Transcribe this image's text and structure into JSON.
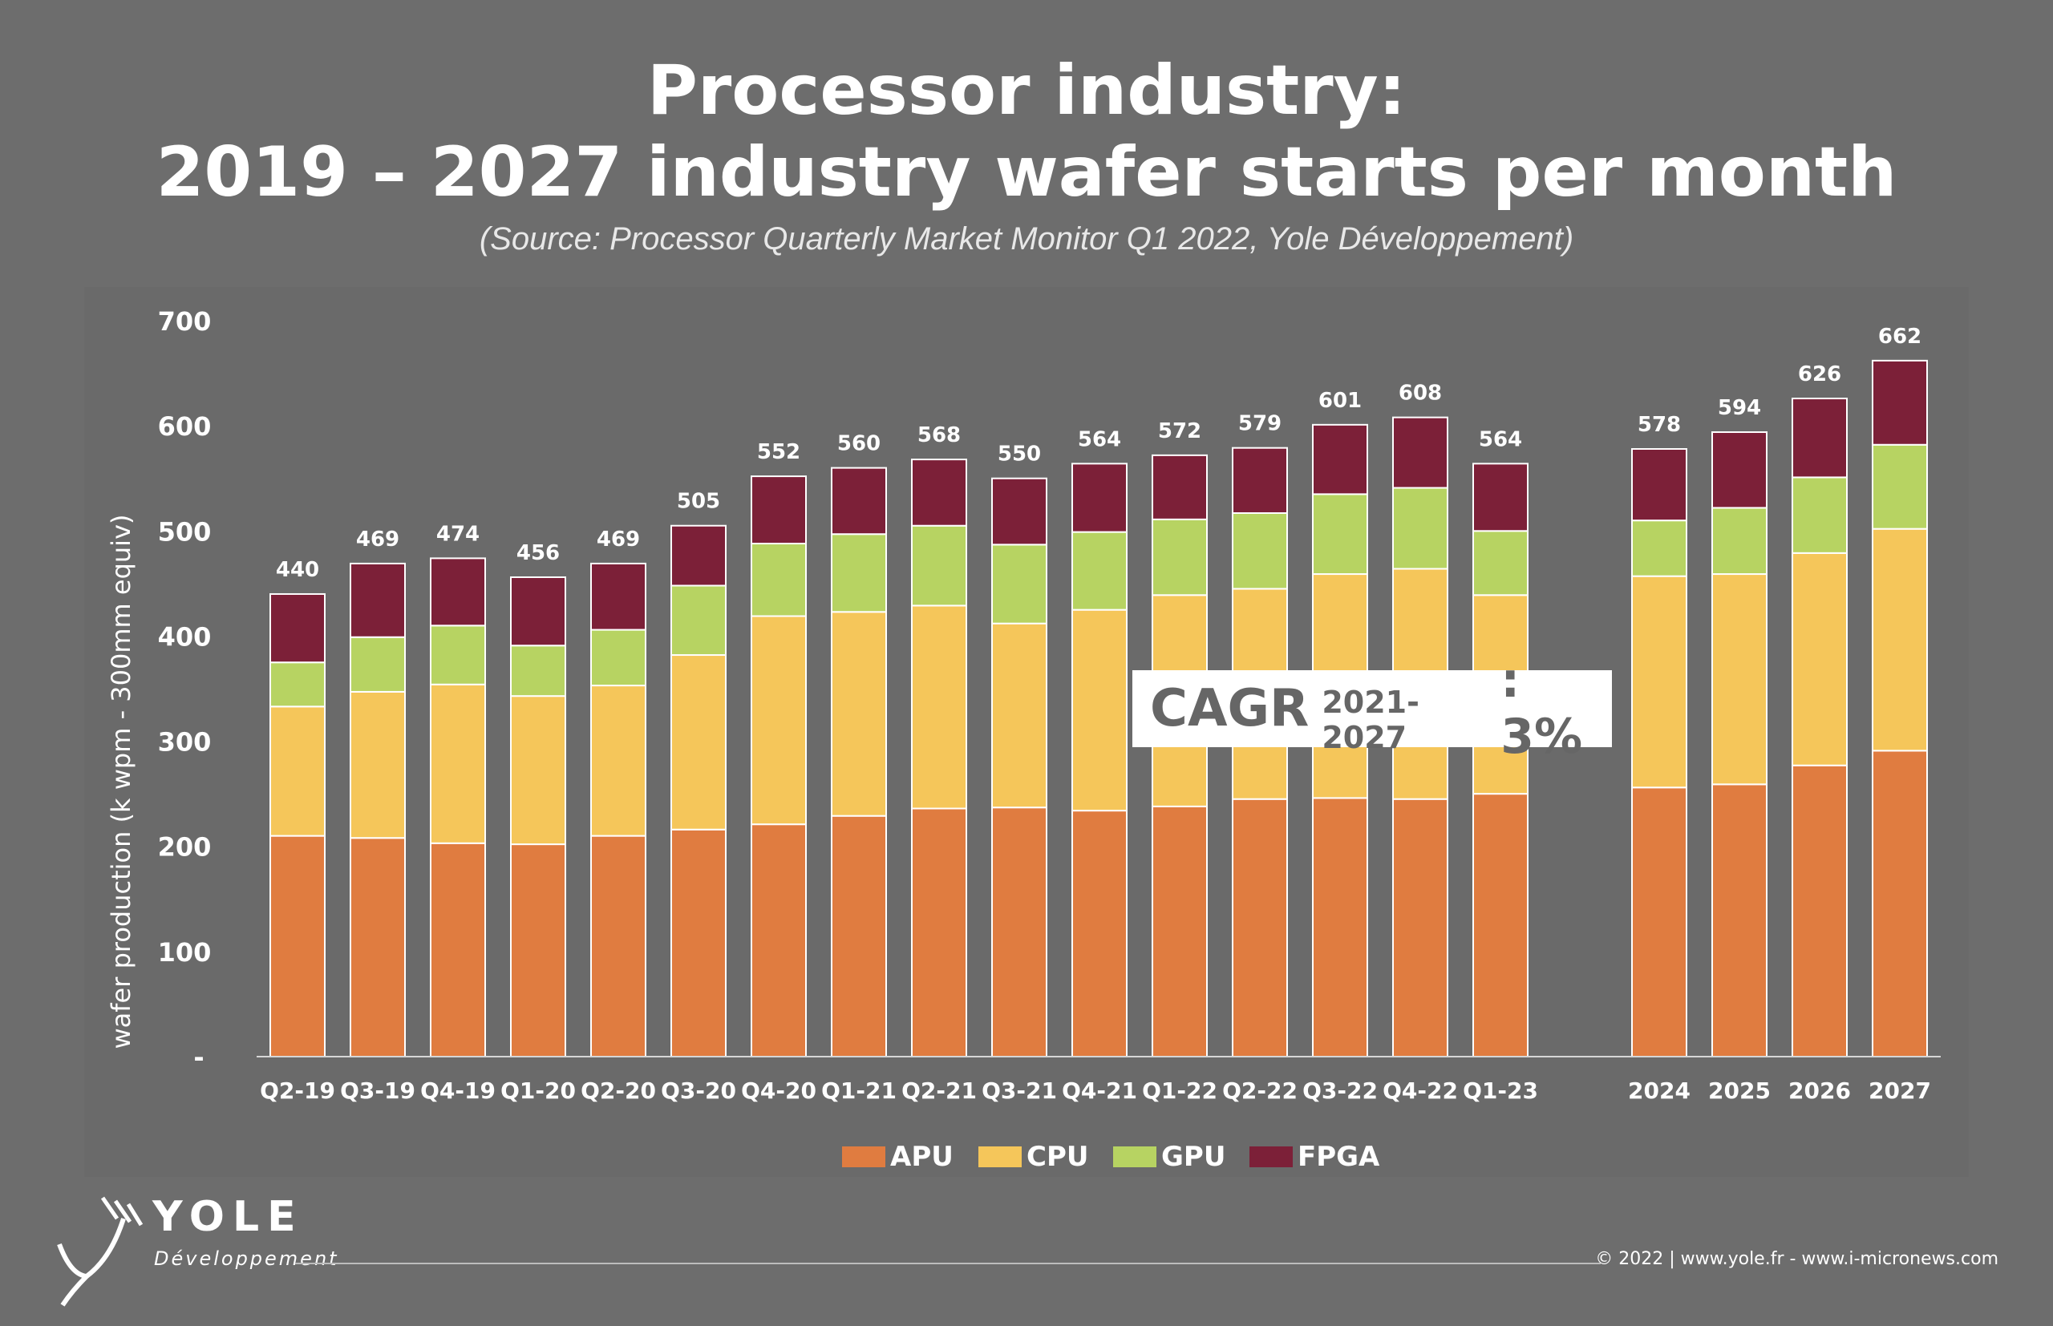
{
  "title_line1": "Processor industry:",
  "title_line2": "2019 – 2027 industry wafer starts per month",
  "source": "(Source: Processor Quarterly Market Monitor Q1  2022, Yole Développement)",
  "cagr": {
    "label": "CAGR",
    "period": "2021-2027",
    "value": ": 3%"
  },
  "logo": {
    "name": "YOLE",
    "subtitle": "Développement"
  },
  "footer": "© 2022 | www.yole.fr - www.i-micronews.com",
  "colors": {
    "APU": "#e07c40",
    "CPU": "#f5c65a",
    "GPU": "#b7d362",
    "FPGA": "#7c2038"
  },
  "chart_data": {
    "type": "bar",
    "stacked": true,
    "ylabel": "wafer production (k wpm - 300mm equiv)",
    "ylim": [
      0,
      700
    ],
    "yticks": [
      0,
      100,
      200,
      300,
      400,
      500,
      600,
      700
    ],
    "ytick_labels": [
      "-",
      "100",
      "200",
      "300",
      "400",
      "500",
      "600",
      "700"
    ],
    "categories": [
      "Q2-19",
      "Q3-19",
      "Q4-19",
      "Q1-20",
      "Q2-20",
      "Q3-20",
      "Q4-20",
      "Q1-21",
      "Q2-21",
      "Q3-21",
      "Q4-21",
      "Q1-22",
      "Q2-22",
      "Q3-22",
      "Q4-22",
      "Q1-23",
      "2024",
      "2025",
      "2026",
      "2027"
    ],
    "series": [
      {
        "name": "APU",
        "values": [
          210,
          208,
          203,
          202,
          210,
          216,
          221,
          229,
          236,
          237,
          234,
          238,
          245,
          246,
          245,
          250,
          256,
          259,
          277,
          291
        ]
      },
      {
        "name": "CPU",
        "values": [
          123,
          139,
          151,
          141,
          143,
          166,
          198,
          194,
          193,
          175,
          191,
          201,
          200,
          213,
          219,
          189,
          201,
          200,
          202,
          211
        ]
      },
      {
        "name": "GPU",
        "values": [
          42,
          52,
          56,
          48,
          53,
          66,
          69,
          74,
          76,
          75,
          74,
          72,
          72,
          76,
          77,
          61,
          53,
          63,
          72,
          80
        ]
      },
      {
        "name": "FPGA",
        "values": [
          65,
          70,
          64,
          65,
          63,
          57,
          64,
          63,
          63,
          63,
          65,
          61,
          62,
          66,
          67,
          64,
          68,
          72,
          75,
          80
        ]
      }
    ],
    "totals": [
      440,
      469,
      474,
      456,
      469,
      505,
      552,
      560,
      568,
      550,
      564,
      572,
      579,
      601,
      608,
      564,
      578,
      594,
      626,
      662
    ],
    "grid": false,
    "legend_position": "bottom"
  }
}
